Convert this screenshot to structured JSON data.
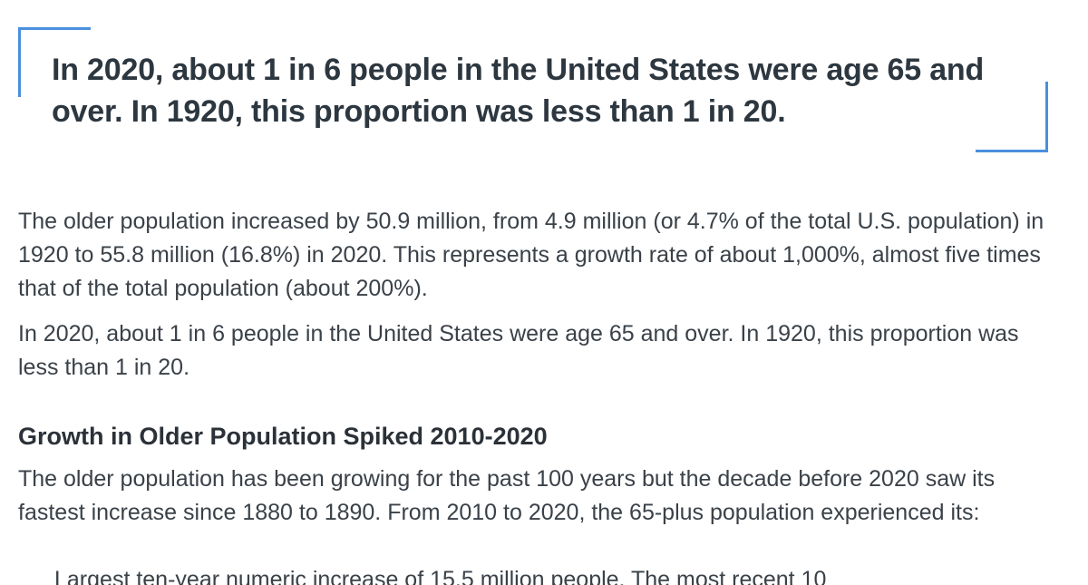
{
  "pullquote": {
    "text": "In 2020, about 1 in 6 people in the United States were age 65 and over. In 1920, this proportion was less than 1 in 20."
  },
  "paragraphs": {
    "p1": "The older population increased by 50.9 million, from 4.9 million (or 4.7% of the total U.S. population) in 1920 to 55.8 million (16.8%) in 2020. This represents a growth rate of about 1,000%, almost five times that of the total population (about 200%).",
    "p2": "In 2020, about 1 in 6 people in the United States were age 65 and over. In 1920, this proportion was less than 1 in 20.",
    "p3": "The older population has been growing for the past 100 years but the decade before 2020 saw its fastest increase since 1880 to 1890.  From 2010 to 2020, the 65-plus population experienced its:",
    "p4_partial": "Largest ten-year numeric increase of 15.5 million people. The most recent 10"
  },
  "section": {
    "heading": "Growth in Older Population Spiked 2010-2020"
  },
  "colors": {
    "accent": "#4a8fe0",
    "heading": "#2d3740",
    "body": "#3a4148"
  }
}
